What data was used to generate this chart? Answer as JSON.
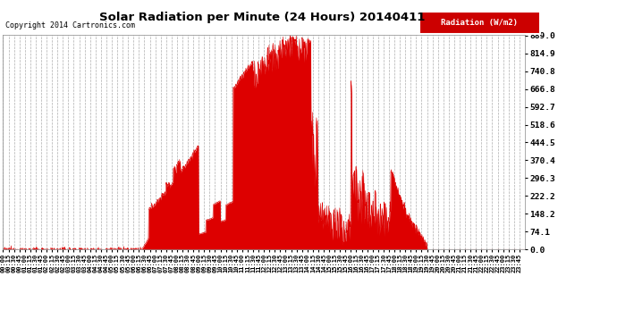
{
  "title": "Solar Radiation per Minute (24 Hours) 20140411",
  "copyright": "Copyright 2014 Cartronics.com",
  "legend_label": "Radiation (W/m2)",
  "bg_color": "#ffffff",
  "plot_bg_color": "#ffffff",
  "fill_color": "#dd0000",
  "line_color": "#dd0000",
  "grid_color": "#999999",
  "ytick_values": [
    0.0,
    74.1,
    148.2,
    222.2,
    296.3,
    370.4,
    444.5,
    518.6,
    592.7,
    666.8,
    740.8,
    814.9,
    889.0
  ],
  "ymax": 889.0,
  "ymin": 0.0,
  "num_minutes": 1440
}
